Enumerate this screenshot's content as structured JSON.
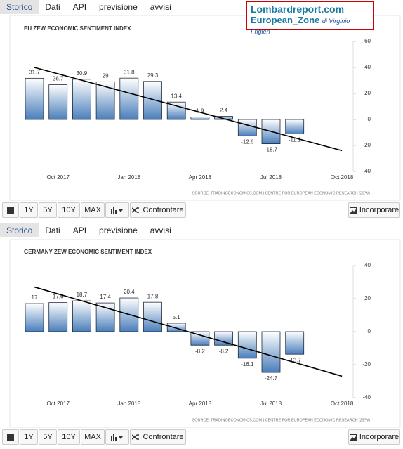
{
  "logo": {
    "site": "Lombardreport.com",
    "zone": "European_Zone",
    "author": "di Virginio Frigieri"
  },
  "panels": [
    {
      "tabs": [
        "Storico",
        "Dati",
        "API",
        "previsione",
        "avvisi"
      ],
      "toolbar": {
        "ranges": [
          "1Y",
          "5Y",
          "10Y",
          "MAX"
        ],
        "compare": "Confrontare",
        "embed": "Incorporare"
      }
    },
    {
      "tabs": [
        "Storico",
        "Dati",
        "API",
        "previsione",
        "avvisi"
      ],
      "toolbar": {
        "ranges": [
          "1Y",
          "5Y",
          "10Y",
          "MAX"
        ],
        "compare": "Confrontare",
        "embed": "Incorporare"
      }
    }
  ],
  "chart_data": [
    {
      "type": "bar",
      "title": "EU ZEW ECONOMIC SENTIMENT INDEX",
      "source": "SOURCE: TRADINGECONOMICS.COM | CENTRE FOR EUROPEAN ECONOMIC RESEARCH (ZEW)",
      "categories": [
        null,
        "Oct 2017",
        null,
        null,
        "Jan 2018",
        null,
        null,
        "Apr 2018",
        null,
        null,
        "Jul 2018",
        null,
        null,
        "Oct 2018"
      ],
      "values": [
        31.7,
        26.7,
        30.9,
        29,
        31.8,
        29.3,
        13.4,
        1.9,
        2.4,
        -12.6,
        -18.7,
        -11.1,
        null,
        null
      ],
      "color": "#4a7ebb",
      "trend": [
        40,
        -24
      ],
      "ylim": [
        -40,
        60
      ],
      "yticks": [
        -40,
        -20,
        0,
        20,
        40,
        60
      ],
      "grid": false
    },
    {
      "type": "bar",
      "title": "GERMANY ZEW ECONOMIC SENTIMENT INDEX",
      "source": "SOURCE: TRADINGECONOMICS.COM | CENTRE FOR EUROPEAN ECONOMIC RESEARCH (ZEW)",
      "categories": [
        null,
        "Oct 2017",
        null,
        null,
        "Jan 2018",
        null,
        null,
        "Apr 2018",
        null,
        null,
        "Jul 2018",
        null,
        null,
        "Oct 2018"
      ],
      "values": [
        17,
        17.6,
        18.7,
        17.4,
        20.4,
        17.8,
        5.1,
        -8.2,
        -8.2,
        -16.1,
        -24.7,
        -13.7,
        null,
        null
      ],
      "color": "#4a7ebb",
      "trend": [
        27,
        -27
      ],
      "ylim": [
        -40,
        40
      ],
      "yticks": [
        -40,
        -20,
        0,
        20,
        40
      ],
      "grid": false
    }
  ]
}
